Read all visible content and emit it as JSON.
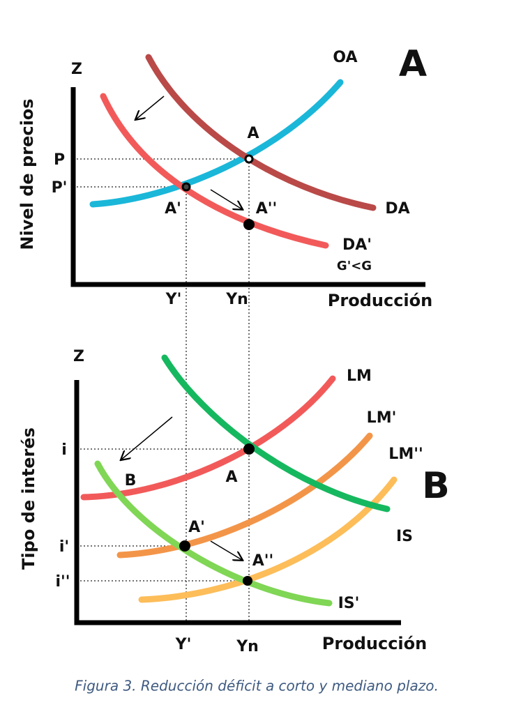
{
  "panel_a": {
    "letter": "A",
    "axis_top": "Z",
    "y_axis_label": "Nivel de precios",
    "x_axis_label": "Producción",
    "curves": {
      "oa": "OA",
      "da": "DA",
      "da_prime": "DA'",
      "da_prime_note": "G'<G"
    },
    "y_ticks": [
      "P",
      "P'"
    ],
    "x_ticks": [
      "Y'",
      "Yn"
    ],
    "points": {
      "a": "A",
      "a_prime": "A'",
      "a_double": "A''"
    }
  },
  "panel_b": {
    "letter": "B",
    "axis_top": "Z",
    "y_axis_label": "Tipo de interés",
    "x_axis_label": "Producción",
    "curves": {
      "lm": "LM",
      "lm_prime": "LM'",
      "lm_double": "LM''",
      "is": "IS",
      "is_prime": "IS'"
    },
    "y_ticks": [
      "i",
      "i'",
      "i''"
    ],
    "x_ticks": [
      "Y'",
      "Yn"
    ],
    "points": {
      "a": "A",
      "b": "B",
      "a_prime": "A'",
      "a_double": "A''"
    }
  },
  "caption": "Figura 3. Reducción déficit a corto y mediano plazo."
}
